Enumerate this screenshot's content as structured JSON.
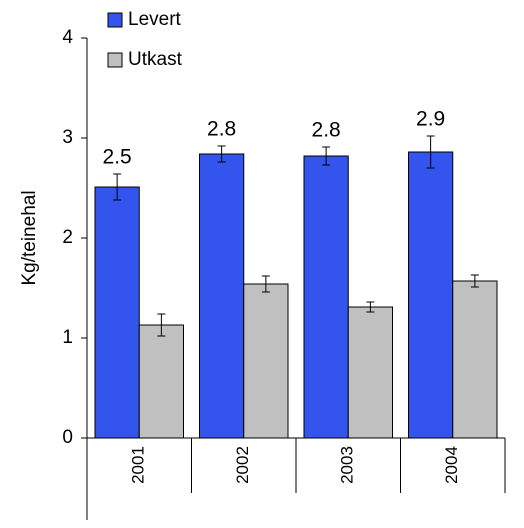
{
  "chart_data": {
    "type": "bar",
    "y_label": "Kg/teinehal",
    "categories": [
      "2001",
      "2002",
      "2003",
      "2004"
    ],
    "series": [
      {
        "name": "Levert",
        "color": "#3355ee",
        "values": [
          2.51,
          2.84,
          2.82,
          2.86
        ],
        "value_labels": [
          "2.5",
          "2.8",
          "2.8",
          "2.9"
        ],
        "errors": [
          0.13,
          0.08,
          0.09,
          0.16
        ]
      },
      {
        "name": "Utkast",
        "color": "#c0c0c0",
        "values": [
          1.13,
          1.54,
          1.31,
          1.57
        ],
        "errors": [
          0.11,
          0.08,
          0.05,
          0.06
        ]
      }
    ],
    "ylim": [
      0,
      4
    ],
    "yticks": [
      0,
      1,
      2,
      3,
      4
    ],
    "legend": "top-left"
  }
}
